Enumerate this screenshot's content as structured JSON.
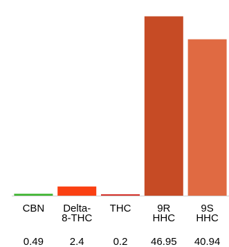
{
  "chart_data": {
    "type": "bar",
    "categories": [
      "CBN",
      "Delta-8-THC",
      "THC",
      "9R HHC",
      "9S HHC"
    ],
    "category_label_lines": [
      [
        "CBN"
      ],
      [
        "Delta-",
        "8-THC"
      ],
      [
        "THC"
      ],
      [
        "9R",
        "HHC"
      ],
      [
        "9S",
        "HHC"
      ]
    ],
    "values": [
      0.49,
      2.4,
      0.2,
      46.95,
      40.94
    ],
    "value_labels": [
      "0.49",
      "2.4",
      "0.2",
      "46.95",
      "40.94"
    ],
    "colors": [
      "#3db52f",
      "#fa4012",
      "#d6322b",
      "#c64b25",
      "#e06a42"
    ],
    "ylim": [
      0,
      48.5
    ],
    "title": "",
    "xlabel": "",
    "ylabel": "",
    "grid": false,
    "legend": "none"
  }
}
